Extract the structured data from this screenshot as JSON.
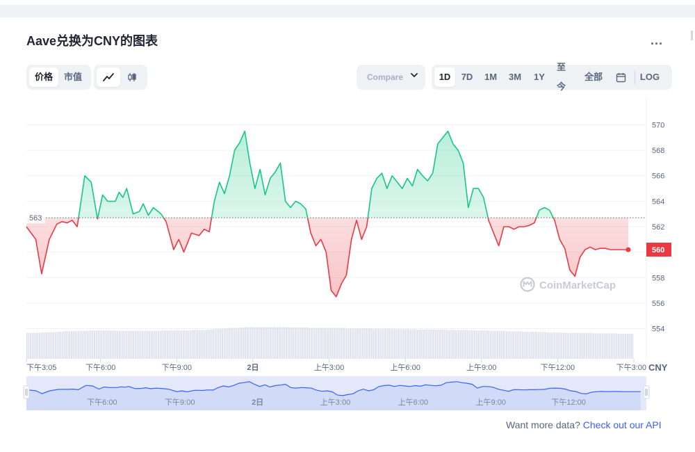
{
  "title": "Aave兑换为CNY的图表",
  "more_label": "...",
  "type_toggle": [
    "价格",
    "市值"
  ],
  "chart_mode_icons": [
    "line-chart-icon",
    "candlestick-icon"
  ],
  "compare": {
    "label": "Compare",
    "chevron": "❯"
  },
  "ranges": [
    "1D",
    "7D",
    "1M",
    "3M",
    "1Y",
    "至今",
    "全部"
  ],
  "calendar_icon": "calendar-icon",
  "log_label": "LOG",
  "footer": {
    "text": "Want more data? ",
    "link": "Check out our API"
  },
  "watermark": "CoinMarketCap",
  "colors": {
    "up": "#16c784",
    "down": "#ea3943",
    "accent": "#3861fb"
  },
  "chart_data": {
    "type": "line",
    "baseline": 562.7,
    "baseline_label": "563",
    "current_value": 560.2,
    "current_label": "560",
    "currency": "CNY",
    "ylim": [
      552.5,
      571.5
    ],
    "y_ticks": [
      554,
      556,
      558,
      560,
      562,
      564,
      566,
      568,
      570
    ],
    "x_ticks": [
      {
        "label": "下午3:05",
        "x": 0
      },
      {
        "label": "下午6:00",
        "x": 2.92
      },
      {
        "label": "下午9:00",
        "x": 5.92
      },
      {
        "label": "2日",
        "x": 8.92
      },
      {
        "label": "上午3:00",
        "x": 11.92
      },
      {
        "label": "上午6:00",
        "x": 14.92
      },
      {
        "label": "上午9:00",
        "x": 17.92
      },
      {
        "label": "下午12:00",
        "x": 20.92
      },
      {
        "label": "下午3:00",
        "x": 23.92
      }
    ],
    "navigator_ticks": [
      {
        "label": "下午6:00",
        "x": 2.92
      },
      {
        "label": "下午9:00",
        "x": 5.92
      },
      {
        "label": "2日",
        "x": 8.92
      },
      {
        "label": "上午3:00",
        "x": 11.92
      },
      {
        "label": "上午6:00",
        "x": 14.92
      },
      {
        "label": "上午9:00",
        "x": 17.92
      },
      {
        "label": "下午12:00",
        "x": 20.92
      }
    ],
    "xlim": [
      0,
      23.92
    ],
    "x": [
      0,
      0.37,
      0.6,
      0.9,
      1.2,
      1.4,
      1.6,
      1.8,
      2.0,
      2.3,
      2.55,
      2.8,
      3.0,
      3.2,
      3.5,
      3.65,
      3.8,
      3.95,
      4.2,
      4.45,
      4.6,
      4.8,
      5.0,
      5.3,
      5.5,
      5.8,
      6.0,
      6.2,
      6.5,
      6.8,
      7.0,
      7.2,
      7.4,
      7.6,
      7.8,
      8.0,
      8.2,
      8.4,
      8.6,
      8.8,
      9.0,
      9.2,
      9.4,
      9.6,
      9.8,
      10.0,
      10.2,
      10.4,
      10.6,
      10.8,
      11.0,
      11.2,
      11.4,
      11.6,
      11.8,
      12.0,
      12.2,
      12.4,
      12.6,
      12.8,
      13.0,
      13.2,
      13.4,
      13.6,
      13.8,
      14.0,
      14.2,
      14.4,
      14.6,
      14.8,
      15.0,
      15.2,
      15.4,
      15.6,
      15.8,
      16.0,
      16.2,
      16.4,
      16.6,
      16.8,
      17.0,
      17.2,
      17.4,
      17.6,
      17.8,
      18.0,
      18.2,
      18.4,
      18.6,
      18.8,
      19.0,
      19.2,
      19.4,
      19.6,
      19.8,
      20.0,
      20.2,
      20.4,
      20.6,
      20.8,
      21.0,
      21.2,
      21.4,
      21.6,
      21.8,
      22.0,
      22.2,
      22.4,
      22.6,
      22.8,
      23.0,
      23.2,
      23.45,
      23.7
    ],
    "values": [
      562.0,
      561.0,
      558.3,
      561.0,
      562.2,
      562.4,
      562.3,
      562.5,
      562.0,
      566.0,
      565.5,
      562.6,
      564.5,
      564.0,
      564.0,
      564.7,
      564.3,
      565.0,
      563.0,
      563.2,
      563.8,
      562.9,
      563.5,
      563.0,
      562.4,
      560.2,
      561.0,
      560.0,
      561.5,
      561.3,
      561.8,
      561.6,
      564.0,
      565.5,
      564.6,
      566.0,
      568.0,
      568.6,
      569.5,
      567.0,
      565.0,
      566.5,
      564.5,
      565.8,
      566.3,
      567.0,
      564.0,
      563.5,
      564.0,
      563.8,
      563.4,
      561.5,
      560.5,
      561.0,
      560.0,
      557.0,
      556.5,
      557.5,
      558.2,
      561.0,
      562.5,
      561.0,
      562.0,
      565.0,
      565.8,
      566.2,
      565.0,
      566.0,
      565.5,
      565.0,
      565.8,
      565.2,
      566.5,
      566.0,
      565.6,
      566.2,
      568.5,
      569.0,
      569.5,
      568.5,
      568.0,
      567.0,
      563.5,
      565.0,
      565.0,
      564.3,
      562.5,
      561.5,
      560.5,
      562.0,
      562.0,
      561.8,
      562.0,
      562.0,
      562.1,
      562.3,
      563.3,
      563.5,
      563.3,
      562.5,
      561.0,
      560.3,
      558.6,
      558.1,
      559.6,
      560.2,
      560.4,
      560.2,
      560.3,
      560.3,
      560.2,
      560.2,
      560.2,
      560.2
    ],
    "volume": [
      0.62,
      0.62,
      0.63,
      0.63,
      0.64,
      0.64,
      0.65,
      0.66,
      0.66,
      0.67,
      0.67,
      0.67,
      0.68,
      0.68,
      0.68,
      0.68,
      0.68,
      0.67,
      0.67,
      0.67,
      0.67,
      0.67,
      0.67,
      0.67,
      0.67,
      0.68,
      0.68,
      0.68,
      0.68,
      0.68,
      0.68,
      0.69,
      0.69,
      0.69,
      0.7,
      0.71,
      0.72,
      0.73,
      0.74,
      0.74,
      0.75,
      0.76,
      0.76,
      0.76,
      0.76,
      0.76,
      0.76,
      0.76,
      0.76,
      0.75,
      0.75,
      0.75,
      0.75,
      0.74,
      0.74,
      0.74,
      0.74,
      0.74,
      0.74,
      0.74,
      0.73,
      0.73,
      0.73,
      0.73,
      0.73,
      0.72,
      0.72,
      0.72,
      0.72,
      0.72,
      0.71,
      0.71,
      0.71,
      0.7,
      0.7,
      0.7,
      0.7,
      0.7,
      0.7,
      0.69,
      0.69,
      0.69,
      0.69,
      0.68,
      0.68,
      0.68,
      0.68,
      0.67,
      0.67,
      0.67,
      0.66,
      0.66,
      0.66,
      0.65,
      0.65,
      0.65,
      0.64,
      0.64,
      0.63,
      0.63,
      0.63,
      0.62,
      0.62,
      0.62,
      0.62,
      0.62,
      0.61,
      0.61,
      0.61,
      0.61,
      0.61,
      0.6,
      0.6,
      0.6
    ]
  }
}
